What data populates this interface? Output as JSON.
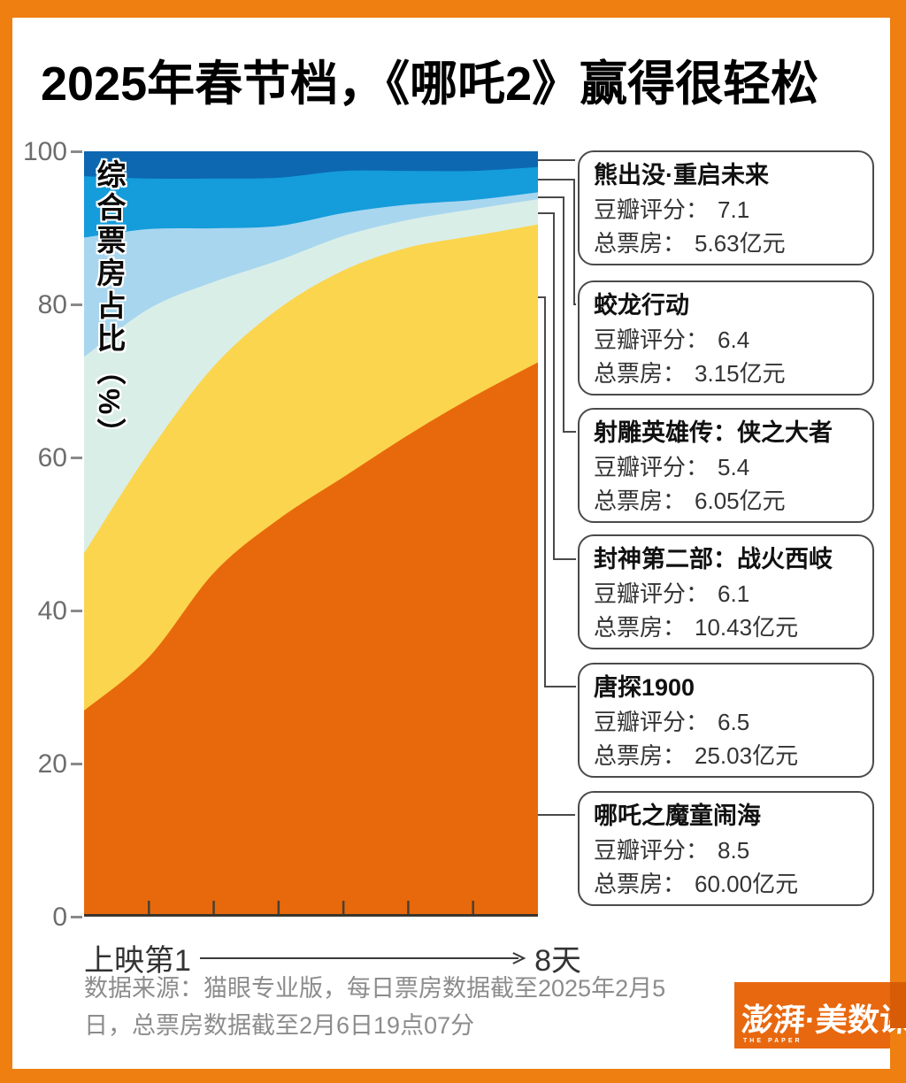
{
  "title": "2025年春节档，《哪吒2》赢得很轻松",
  "chart_data": {
    "type": "area",
    "stacked": true,
    "title": "2025年春节档，《哪吒2》赢得很轻松",
    "x": [
      1,
      2,
      3,
      4,
      5,
      6,
      7,
      8
    ],
    "xlabel_start": "上映第1",
    "xlabel_end": "8天",
    "ylabel": "综合票房占比（%）",
    "ylim": [
      0,
      100
    ],
    "yticks": [
      "100",
      "80",
      "60",
      "40",
      "20",
      "0"
    ],
    "grid": false,
    "legend_position": "right-annotation-boxes",
    "series": [
      {
        "name": "哪吒之魔童闹海",
        "color": "#E8690B",
        "values": [
          27,
          34,
          45,
          52,
          57.5,
          63,
          68,
          72.5
        ]
      },
      {
        "name": "唐探1900",
        "color": "#FBD54E",
        "values": [
          20.6,
          26.8,
          27,
          27.5,
          27,
          24.5,
          21,
          18
        ]
      },
      {
        "name": "封神第二部：战火西岐",
        "color": "#DAEEE8",
        "values": [
          25.6,
          18.7,
          11,
          6.3,
          4.5,
          3.6,
          3.5,
          3.3
        ]
      },
      {
        "name": "射雕英雄传：侠之大者",
        "color": "#A8D6EF",
        "values": [
          15.6,
          10.4,
          7,
          4.5,
          3,
          2,
          1.2,
          0.9
        ]
      },
      {
        "name": "蛟龙行动",
        "color": "#149CDB",
        "values": [
          8,
          6.6,
          6.5,
          6.3,
          5.5,
          4.4,
          3.8,
          3.3
        ]
      },
      {
        "name": "熊出没·重启未来",
        "color": "#0D68B1",
        "values": [
          3.2,
          3.5,
          3.5,
          3.4,
          2.5,
          2.5,
          2.5,
          2
        ]
      }
    ]
  },
  "annotations": [
    {
      "title": "熊出没·重启未来",
      "rating_label": "豆瓣评分：",
      "rating": "7.1",
      "gross_label": "总票房：",
      "gross": "5.63亿元"
    },
    {
      "title": "蛟龙行动",
      "rating_label": "豆瓣评分：",
      "rating": "6.4",
      "gross_label": "总票房：",
      "gross": "3.15亿元"
    },
    {
      "title": "射雕英雄传：侠之大者",
      "rating_label": "豆瓣评分：",
      "rating": "5.4",
      "gross_label": "总票房：",
      "gross": "6.05亿元"
    },
    {
      "title": "封神第二部：战火西岐",
      "rating_label": "豆瓣评分：",
      "rating": "6.1",
      "gross_label": "总票房：",
      "gross": "10.43亿元"
    },
    {
      "title": "唐探1900",
      "rating_label": "豆瓣评分：",
      "rating": "6.5",
      "gross_label": "总票房：",
      "gross": "25.03亿元"
    },
    {
      "title": "哪吒之魔童闹海",
      "rating_label": "豆瓣评分：",
      "rating": "8.5",
      "gross_label": "总票房：",
      "gross": "60.00亿元"
    }
  ],
  "footer": {
    "lines": [
      "数据来源：猫眼专业版，每日票房数据截至2025年2月5",
      "日，总票房数据截至2月6日19点07分"
    ]
  },
  "logo": {
    "text": "澎湃·美数课",
    "subtext": "THE PAPER"
  },
  "colors": {
    "frame": "#EE7F10",
    "background": "#ffffff",
    "logo_bg": "#E8680F",
    "logo_corner": "#D85C06",
    "connector": "#4a4a4a",
    "axis_text": "#6d6d6d",
    "baseline": "#3b362c"
  }
}
